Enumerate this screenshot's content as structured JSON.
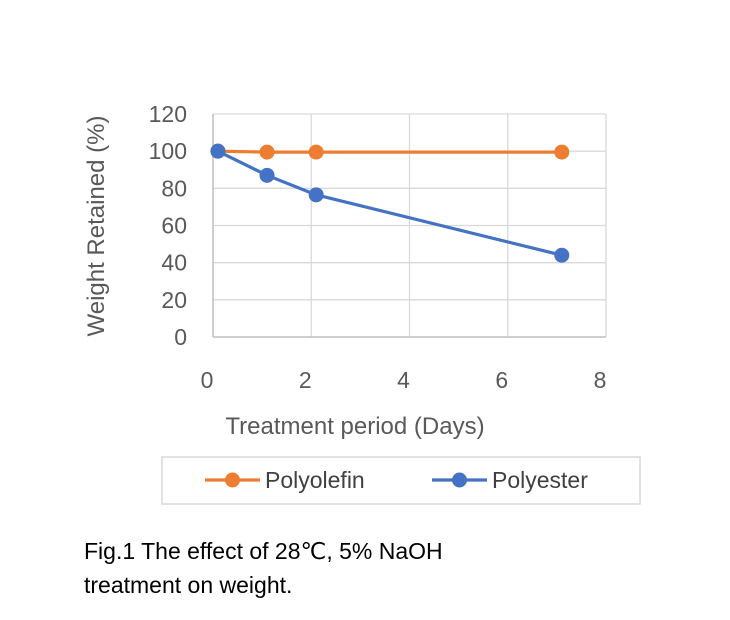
{
  "chart_data": {
    "type": "line",
    "title": "",
    "xlabel": "Treatment period (Days)",
    "ylabel": "Weight Retained (%)",
    "xlim": [
      0,
      8
    ],
    "ylim": [
      0,
      120
    ],
    "xticks": [
      0,
      2,
      4,
      6,
      8
    ],
    "yticks": [
      0,
      20,
      40,
      60,
      80,
      100,
      120
    ],
    "grid": true,
    "legend_position": "bottom",
    "series": [
      {
        "name": "Polyolefin",
        "color": "#ED7D31",
        "x": [
          0.1,
          1.1,
          2.1,
          7.1
        ],
        "y": [
          100,
          99.5,
          99.5,
          99.5
        ]
      },
      {
        "name": "Polyester",
        "color": "#4472C4",
        "x": [
          0.1,
          1.1,
          2.1,
          7.1
        ],
        "y": [
          100,
          87,
          76.5,
          44
        ]
      }
    ]
  },
  "caption": {
    "line1": "Fig.1 The effect of 28℃, 5% NaOH",
    "line2": "treatment on weight."
  }
}
